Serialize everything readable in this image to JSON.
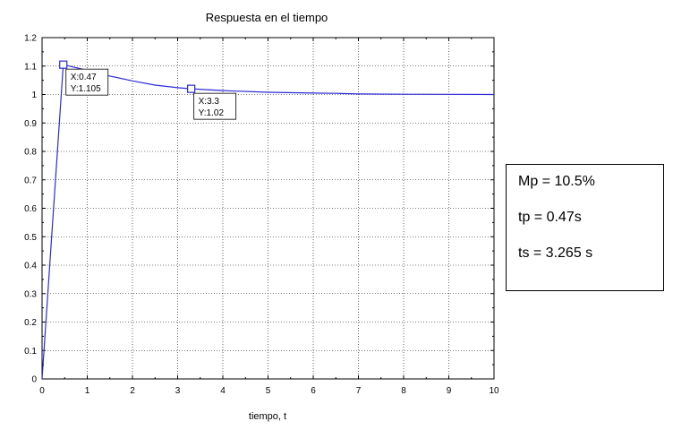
{
  "chart_data": {
    "type": "line",
    "title": "Respuesta en el tiempo",
    "xlabel": "tiempo, t",
    "ylabel": "",
    "xlim": [
      0,
      10
    ],
    "ylim": [
      0,
      1.2
    ],
    "grid": true,
    "xticks": [
      "0",
      "1",
      "2",
      "3",
      "4",
      "5",
      "6",
      "7",
      "8",
      "9",
      "10"
    ],
    "yticks": [
      "0",
      "0.1",
      "0.2",
      "0.3",
      "0.4",
      "0.5",
      "0.6",
      "0.7",
      "0.8",
      "0.9",
      "1",
      "1.1",
      "1.2"
    ],
    "series": [
      {
        "color": "#2b2bd6",
        "x": [
          0,
          0.47,
          1.0,
          1.5,
          2.0,
          2.5,
          3.0,
          3.3,
          4.0,
          5.0,
          6.0,
          6.5,
          7.0,
          8.0,
          9.0,
          10.0
        ],
        "y": [
          0,
          1.105,
          1.085,
          1.065,
          1.048,
          1.033,
          1.024,
          1.02,
          1.014,
          1.008,
          1.005,
          1.004,
          1.002,
          1.001,
          1.0005,
          1.0
        ]
      }
    ],
    "datatips": [
      {
        "x": 0.47,
        "y": 1.105,
        "x_label": "X:0.47",
        "y_label": "Y:1.105"
      },
      {
        "x": 3.3,
        "y": 1.02,
        "x_label": "X:3.3",
        "y_label": "Y:1.02"
      }
    ]
  },
  "info_box": {
    "lines": [
      "Mp = 10.5%",
      "tp = 0.47s",
      "ts = 3.265 s"
    ]
  }
}
